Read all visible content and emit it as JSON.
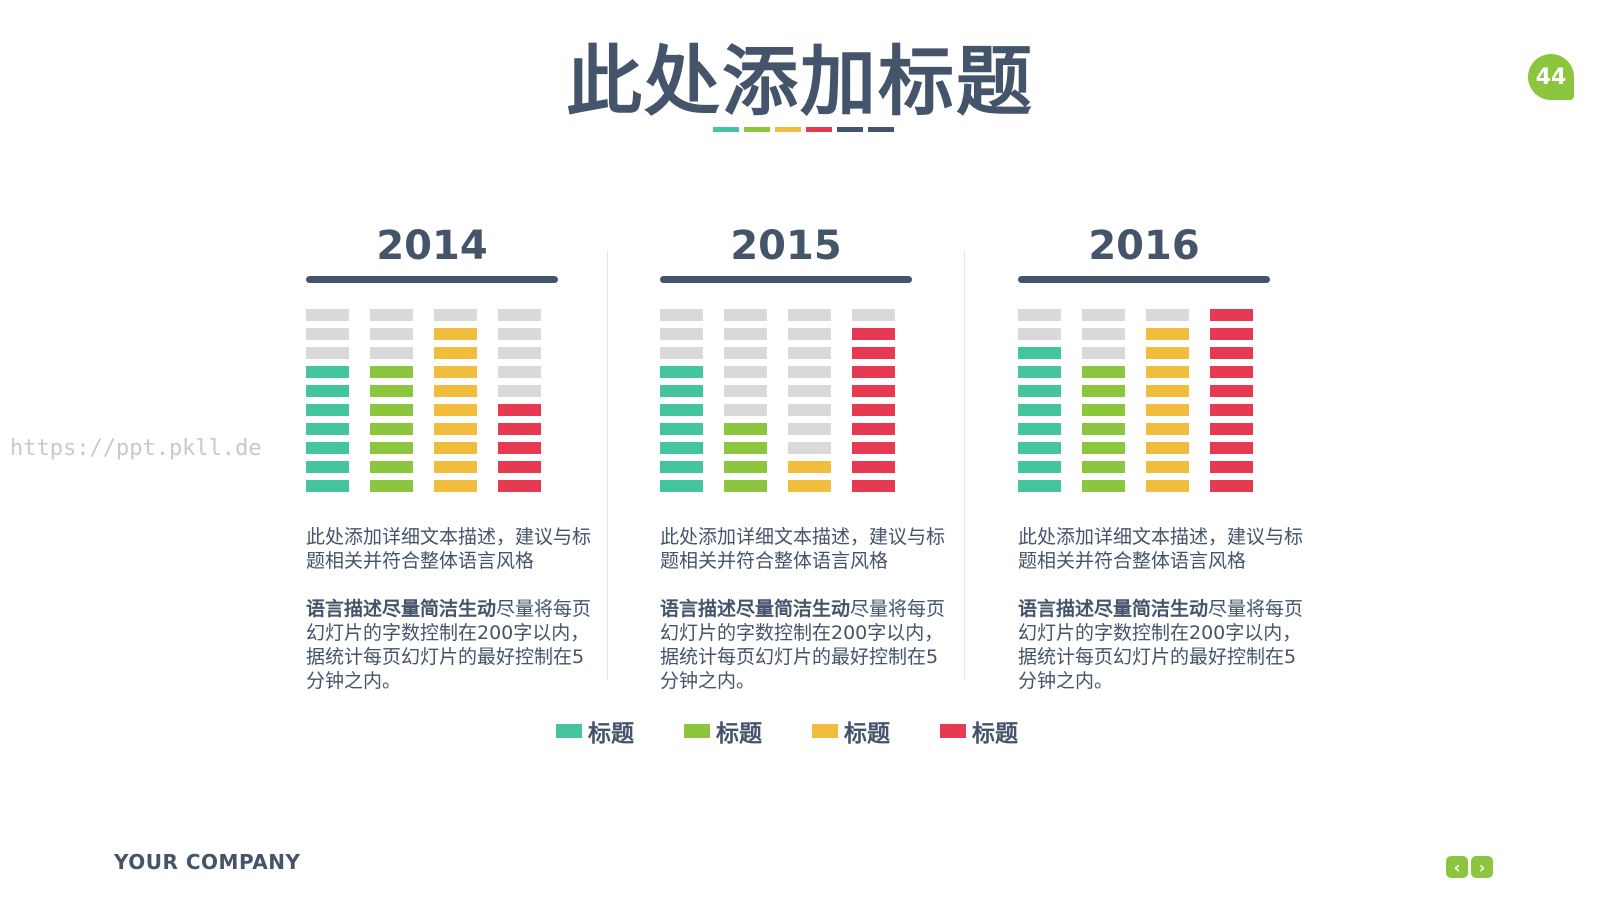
{
  "page": {
    "title": "此处添加标题",
    "page_number": "44",
    "watermark": "https://ppt.pkll.de",
    "company": "YOUR COMPANY",
    "nav": {
      "prev": "‹",
      "next": "›"
    }
  },
  "colors": {
    "teal": "#45c4a0",
    "green": "#8cc63f",
    "yellow": "#f0bd3c",
    "red": "#e53a51",
    "dark": "#44546a",
    "empty": "#d9d9d9"
  },
  "title_strip": [
    "#45c4a0",
    "#8cc63f",
    "#f0bd3c",
    "#e53a51",
    "#44546a",
    "#44546a"
  ],
  "chart_data": {
    "type": "bar",
    "total_blocks": 10,
    "series": [
      {
        "name": "标题",
        "color": "#45c4a0"
      },
      {
        "name": "标题",
        "color": "#8cc63f"
      },
      {
        "name": "标题",
        "color": "#f0bd3c"
      },
      {
        "name": "标题",
        "color": "#e53a51"
      }
    ],
    "panels": [
      {
        "year": "2014",
        "values": [
          7,
          7,
          9,
          5
        ],
        "desc": "此处添加详细文本描述，建议与标题相关并符合整体语言风格",
        "bold": "语言描述尽量简洁生动",
        "rest": "尽量将每页幻灯片的字数控制在200字以内，据统计每页幻灯片的最好控制在5分钟之内。"
      },
      {
        "year": "2015",
        "values": [
          7,
          4,
          2,
          9
        ],
        "desc": "此处添加详细文本描述，建议与标题相关并符合整体语言风格",
        "bold": "语言描述尽量简洁生动",
        "rest": "尽量将每页幻灯片的字数控制在200字以内，据统计每页幻灯片的最好控制在5分钟之内。"
      },
      {
        "year": "2016",
        "values": [
          8,
          7,
          9,
          10
        ],
        "desc": "此处添加详细文本描述，建议与标题相关并符合整体语言风格",
        "bold": "语言描述尽量简洁生动",
        "rest": "尽量将每页幻灯片的字数控制在200字以内，据统计每页幻灯片的最好控制在5分钟之内。"
      }
    ]
  }
}
